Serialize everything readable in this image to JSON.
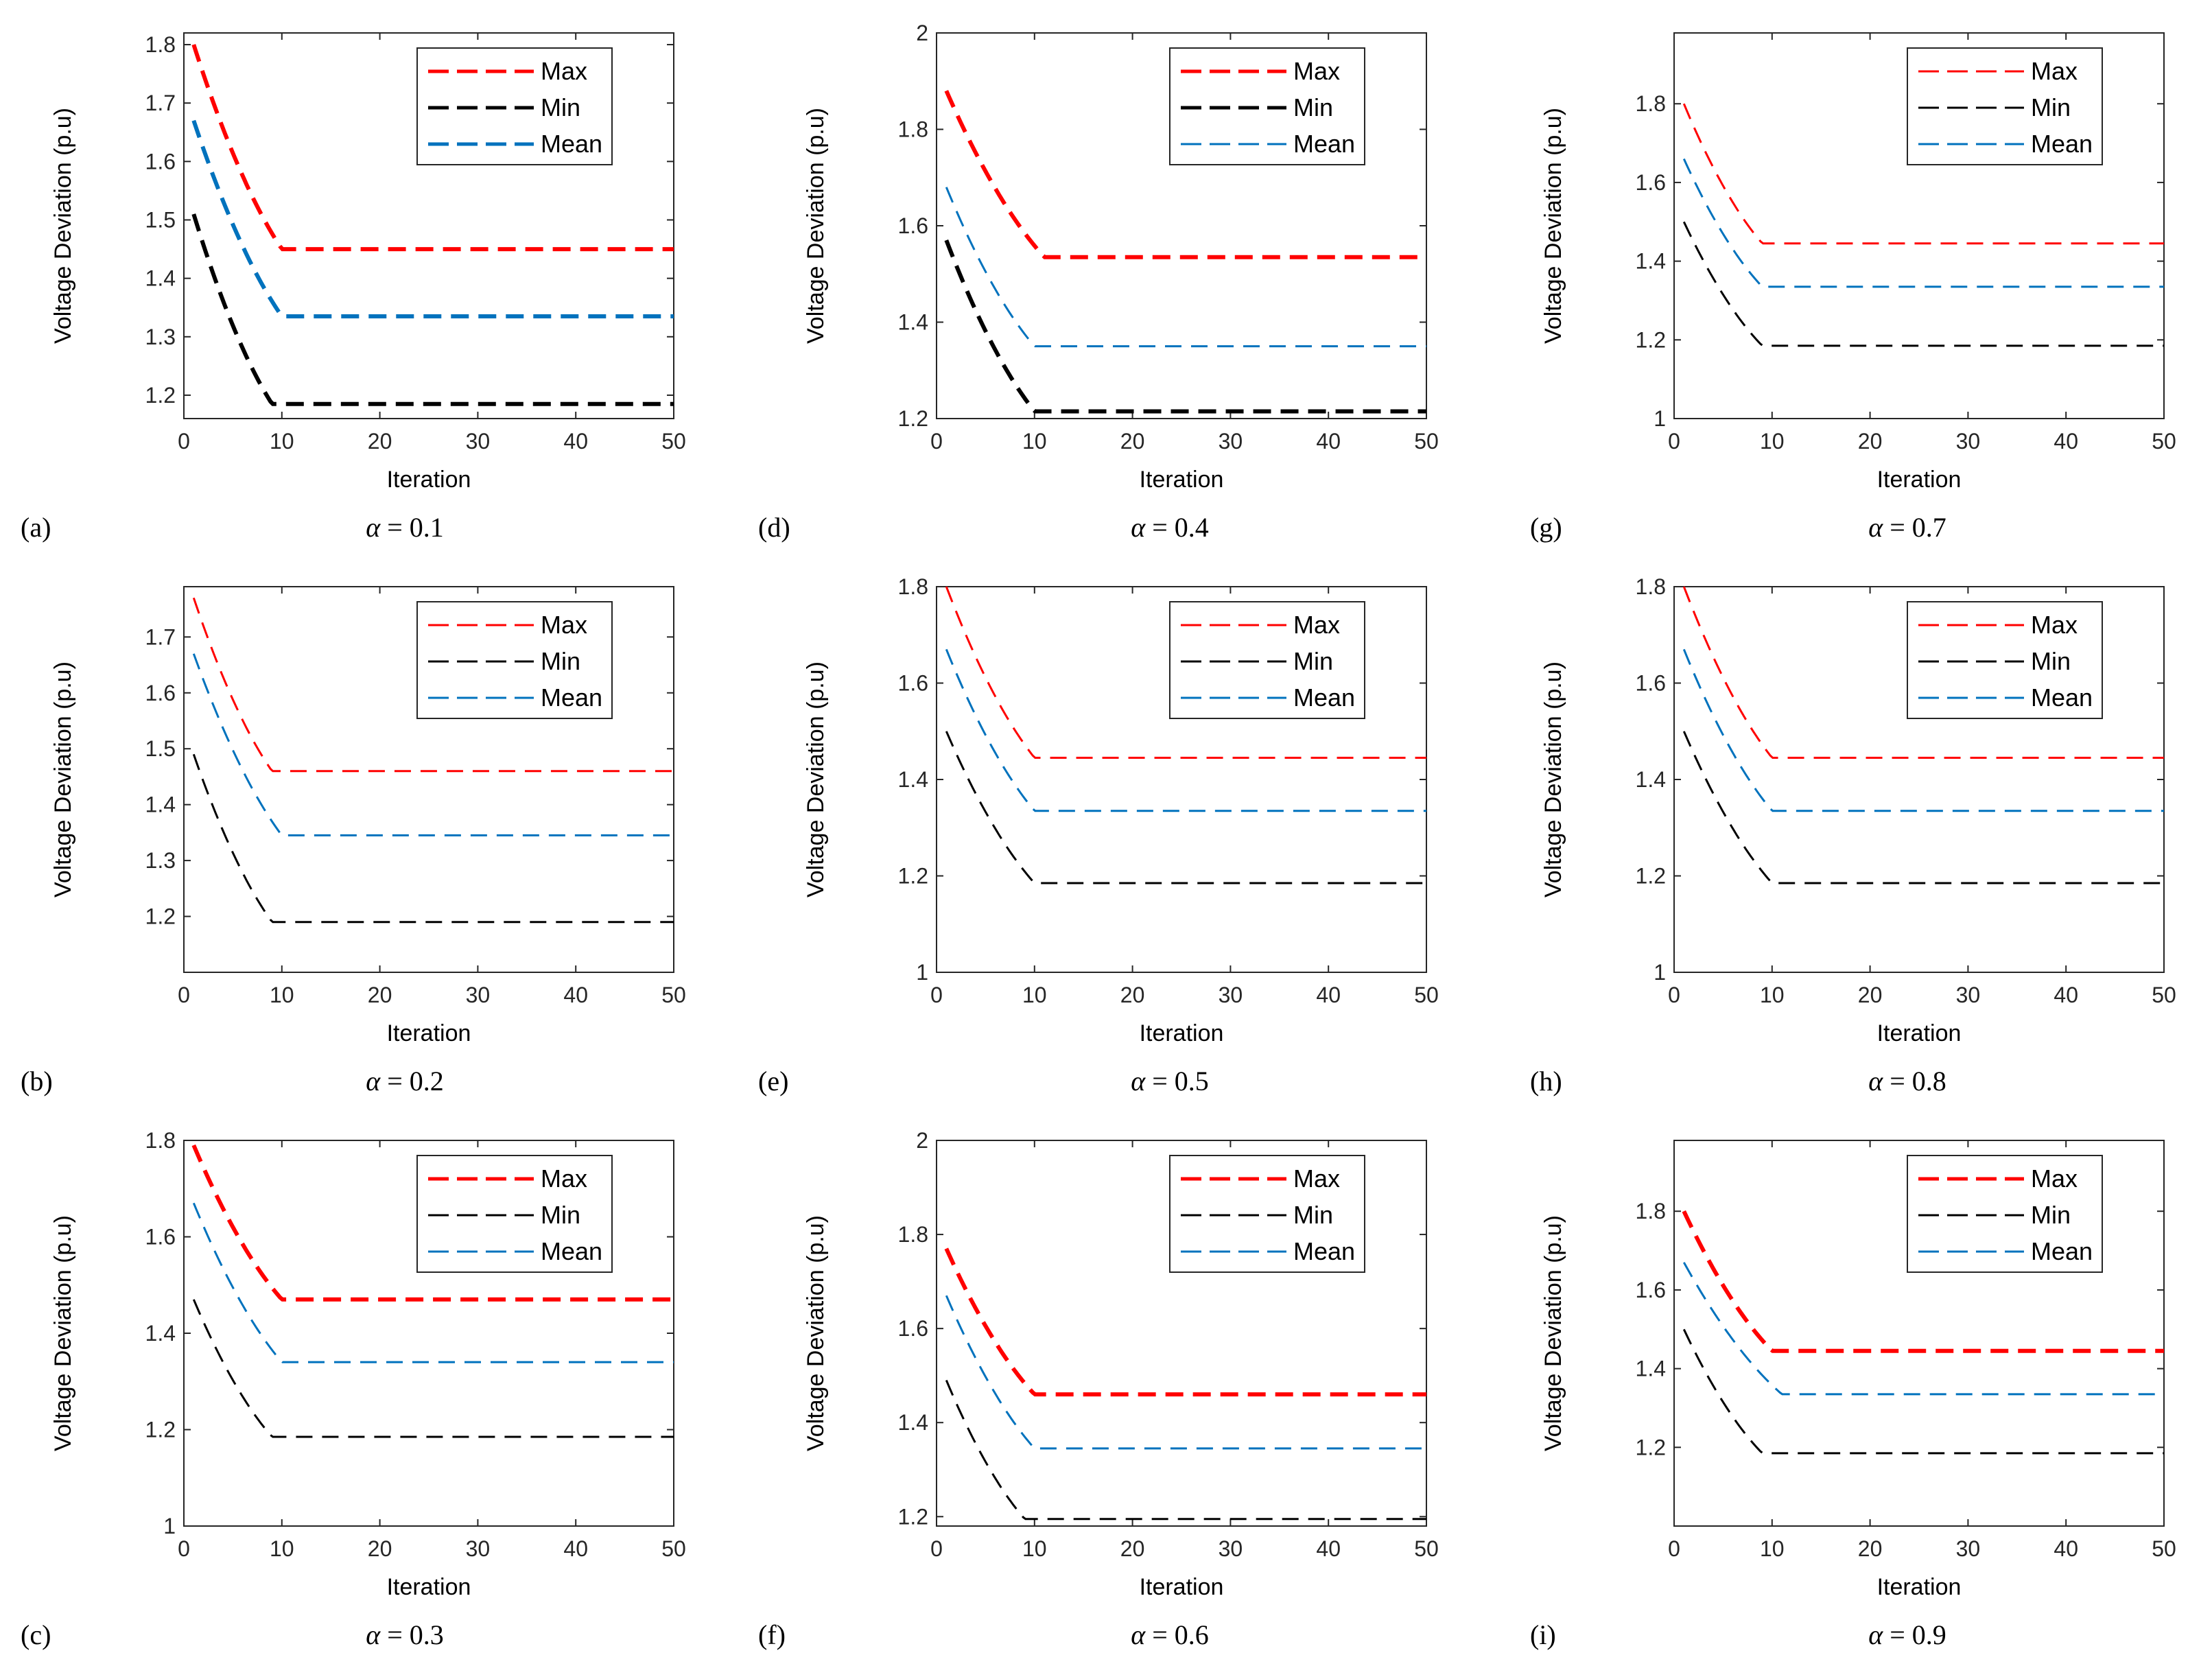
{
  "figure": {
    "panels_order": [
      "a",
      "b",
      "c",
      "d",
      "e",
      "f",
      "g",
      "h",
      "i"
    ]
  },
  "colors": {
    "max": "#ff0000",
    "min": "#000000",
    "mean": "#0072bd"
  },
  "chart_data": [
    {
      "id": "a",
      "type": "line",
      "panel_label": "(a)",
      "alpha_symbol": "α",
      "alpha_value": "= 0.1",
      "xlabel": "Iteration",
      "ylabel": "Voltage Deviation (p.u)",
      "xlim": [
        0,
        50
      ],
      "ylim": [
        1.16,
        1.82
      ],
      "xticks": [
        "0",
        "10",
        "20",
        "30",
        "40",
        "50"
      ],
      "yticks": [
        "1.2",
        "1.3",
        "1.4",
        "1.5",
        "1.6",
        "1.7",
        "1.8"
      ],
      "ytick_values": [
        1.2,
        1.3,
        1.4,
        1.5,
        1.6,
        1.7,
        1.8
      ],
      "legend": [
        "Max",
        "Min",
        "Mean"
      ],
      "legend_position": "top-right",
      "series": [
        {
          "name": "Max",
          "start": 1.8,
          "final": 1.45,
          "converge_iter": 10,
          "thick": true
        },
        {
          "name": "Min",
          "start": 1.51,
          "final": 1.185,
          "converge_iter": 9,
          "thick": true
        },
        {
          "name": "Mean",
          "start": 1.67,
          "final": 1.335,
          "converge_iter": 10,
          "thick": true
        }
      ]
    },
    {
      "id": "b",
      "type": "line",
      "panel_label": "(b)",
      "alpha_symbol": "α",
      "alpha_value": "= 0.2",
      "xlabel": "Iteration",
      "ylabel": "Voltage Deviation (p.u)",
      "xlim": [
        0,
        50
      ],
      "ylim": [
        1.1,
        1.79
      ],
      "xticks": [
        "0",
        "10",
        "20",
        "30",
        "40",
        "50"
      ],
      "yticks": [
        "1.2",
        "1.3",
        "1.4",
        "1.5",
        "1.6",
        "1.7"
      ],
      "ytick_values": [
        1.2,
        1.3,
        1.4,
        1.5,
        1.6,
        1.7
      ],
      "legend": [
        "Max",
        "Min",
        "Mean"
      ],
      "legend_position": "top-right",
      "series": [
        {
          "name": "Max",
          "start": 1.77,
          "final": 1.46,
          "converge_iter": 9,
          "thick": false
        },
        {
          "name": "Min",
          "start": 1.49,
          "final": 1.19,
          "converge_iter": 9,
          "thick": false
        },
        {
          "name": "Mean",
          "start": 1.67,
          "final": 1.345,
          "converge_iter": 10,
          "thick": false
        }
      ]
    },
    {
      "id": "c",
      "type": "line",
      "panel_label": "(c)",
      "alpha_symbol": "α",
      "alpha_value": "= 0.3",
      "xlabel": "Iteration",
      "ylabel": "Voltage Deviation (p.u)",
      "xlim": [
        0,
        50
      ],
      "ylim": [
        1.0,
        1.8
      ],
      "xticks": [
        "0",
        "10",
        "20",
        "30",
        "40",
        "50"
      ],
      "yticks": [
        "1",
        "1.2",
        "1.4",
        "1.6",
        "1.8"
      ],
      "ytick_values": [
        1.0,
        1.2,
        1.4,
        1.6,
        1.8
      ],
      "legend": [
        "Max",
        "Min",
        "Mean"
      ],
      "legend_position": "top-right",
      "series": [
        {
          "name": "Max",
          "start": 1.79,
          "final": 1.47,
          "converge_iter": 10,
          "thick": true
        },
        {
          "name": "Min",
          "start": 1.47,
          "final": 1.185,
          "converge_iter": 9,
          "thick": false
        },
        {
          "name": "Mean",
          "start": 1.67,
          "final": 1.34,
          "converge_iter": 10,
          "thick": false
        }
      ]
    },
    {
      "id": "d",
      "type": "line",
      "panel_label": "(d)",
      "alpha_symbol": "α",
      "alpha_value": "= 0.4",
      "xlabel": "Iteration",
      "ylabel": "Voltage Deviation (p.u)",
      "xlim": [
        0,
        50
      ],
      "ylim": [
        1.2,
        2.0
      ],
      "xticks": [
        "0",
        "10",
        "20",
        "30",
        "40",
        "50"
      ],
      "yticks": [
        "1.2",
        "1.4",
        "1.6",
        "1.8",
        "2"
      ],
      "ytick_values": [
        1.2,
        1.4,
        1.6,
        1.8,
        2.0
      ],
      "legend": [
        "Max",
        "Min",
        "Mean"
      ],
      "legend_position": "top-right",
      "series": [
        {
          "name": "Max",
          "start": 1.88,
          "final": 1.535,
          "converge_iter": 11,
          "thick": true
        },
        {
          "name": "Min",
          "start": 1.57,
          "final": 1.215,
          "converge_iter": 10,
          "thick": true
        },
        {
          "name": "Mean",
          "start": 1.68,
          "final": 1.35,
          "converge_iter": 10,
          "thick": false
        }
      ]
    },
    {
      "id": "e",
      "type": "line",
      "panel_label": "(e)",
      "alpha_symbol": "α",
      "alpha_value": "= 0.5",
      "xlabel": "Iteration",
      "ylabel": "Voltage Deviation (p.u)",
      "xlim": [
        0,
        50
      ],
      "ylim": [
        1.0,
        1.8
      ],
      "xticks": [
        "0",
        "10",
        "20",
        "30",
        "40",
        "50"
      ],
      "yticks": [
        "1",
        "1.2",
        "1.4",
        "1.6",
        "1.8"
      ],
      "ytick_values": [
        1.0,
        1.2,
        1.4,
        1.6,
        1.8
      ],
      "legend": [
        "Max",
        "Min",
        "Mean"
      ],
      "legend_position": "top-right",
      "series": [
        {
          "name": "Max",
          "start": 1.8,
          "final": 1.445,
          "converge_iter": 10,
          "thick": false
        },
        {
          "name": "Min",
          "start": 1.5,
          "final": 1.185,
          "converge_iter": 10,
          "thick": false
        },
        {
          "name": "Mean",
          "start": 1.67,
          "final": 1.335,
          "converge_iter": 10,
          "thick": false
        }
      ]
    },
    {
      "id": "f",
      "type": "line",
      "panel_label": "(f)",
      "alpha_symbol": "α",
      "alpha_value": "= 0.6",
      "xlabel": "Iteration",
      "ylabel": "Voltage Deviation (p.u)",
      "xlim": [
        0,
        50
      ],
      "ylim": [
        1.18,
        2.0
      ],
      "xticks": [
        "0",
        "10",
        "20",
        "30",
        "40",
        "50"
      ],
      "yticks": [
        "1.2",
        "1.4",
        "1.6",
        "1.8",
        "2"
      ],
      "ytick_values": [
        1.2,
        1.4,
        1.6,
        1.8,
        2.0
      ],
      "legend": [
        "Max",
        "Min",
        "Mean"
      ],
      "legend_position": "top-right",
      "series": [
        {
          "name": "Max",
          "start": 1.77,
          "final": 1.46,
          "converge_iter": 10,
          "thick": true
        },
        {
          "name": "Min",
          "start": 1.49,
          "final": 1.195,
          "converge_iter": 9,
          "thick": false
        },
        {
          "name": "Mean",
          "start": 1.67,
          "final": 1.345,
          "converge_iter": 10,
          "thick": false
        }
      ]
    },
    {
      "id": "g",
      "type": "line",
      "panel_label": "(g)",
      "alpha_symbol": "α",
      "alpha_value": "= 0.7",
      "xlabel": "Iteration",
      "ylabel": "Voltage Deviation (p.u)",
      "xlim": [
        0,
        50
      ],
      "ylim": [
        1.0,
        1.98
      ],
      "xticks": [
        "0",
        "10",
        "20",
        "30",
        "40",
        "50"
      ],
      "yticks": [
        "1",
        "1.2",
        "1.4",
        "1.6",
        "1.8"
      ],
      "ytick_values": [
        1.0,
        1.2,
        1.4,
        1.6,
        1.8
      ],
      "legend": [
        "Max",
        "Min",
        "Mean"
      ],
      "legend_position": "top-right",
      "series": [
        {
          "name": "Max",
          "start": 1.8,
          "final": 1.445,
          "converge_iter": 9,
          "thick": false
        },
        {
          "name": "Min",
          "start": 1.5,
          "final": 1.185,
          "converge_iter": 9,
          "thick": false
        },
        {
          "name": "Mean",
          "start": 1.66,
          "final": 1.335,
          "converge_iter": 9,
          "thick": false
        }
      ]
    },
    {
      "id": "h",
      "type": "line",
      "panel_label": "(h)",
      "alpha_symbol": "α",
      "alpha_value": "= 0.8",
      "xlabel": "Iteration",
      "ylabel": "Voltage Deviation (p.u)",
      "xlim": [
        0,
        50
      ],
      "ylim": [
        1.0,
        1.8
      ],
      "xticks": [
        "0",
        "10",
        "20",
        "30",
        "40",
        "50"
      ],
      "yticks": [
        "1",
        "1.2",
        "1.4",
        "1.6",
        "1.8"
      ],
      "ytick_values": [
        1.0,
        1.2,
        1.4,
        1.6,
        1.8
      ],
      "legend": [
        "Max",
        "Min",
        "Mean"
      ],
      "legend_position": "top-right",
      "series": [
        {
          "name": "Max",
          "start": 1.8,
          "final": 1.445,
          "converge_iter": 10,
          "thick": false
        },
        {
          "name": "Min",
          "start": 1.5,
          "final": 1.185,
          "converge_iter": 10,
          "thick": false
        },
        {
          "name": "Mean",
          "start": 1.67,
          "final": 1.335,
          "converge_iter": 10,
          "thick": false
        }
      ]
    },
    {
      "id": "i",
      "type": "line",
      "panel_label": "(i)",
      "alpha_symbol": "α",
      "alpha_value": "= 0.9",
      "xlabel": "Iteration",
      "ylabel": "Voltage Deviation (p.u)",
      "xlim": [
        0,
        50
      ],
      "ylim": [
        1.0,
        1.98
      ],
      "xticks": [
        "0",
        "10",
        "20",
        "30",
        "40",
        "50"
      ],
      "yticks": [
        "1.2",
        "1.4",
        "1.6",
        "1.8"
      ],
      "ytick_values": [
        1.2,
        1.4,
        1.6,
        1.8
      ],
      "legend": [
        "Max",
        "Min",
        "Mean"
      ],
      "legend_position": "top-right",
      "series": [
        {
          "name": "Max",
          "start": 1.8,
          "final": 1.445,
          "converge_iter": 10,
          "thick": true
        },
        {
          "name": "Min",
          "start": 1.5,
          "final": 1.185,
          "converge_iter": 9,
          "thick": false
        },
        {
          "name": "Mean",
          "start": 1.67,
          "final": 1.335,
          "converge_iter": 11,
          "thick": false
        }
      ]
    }
  ]
}
